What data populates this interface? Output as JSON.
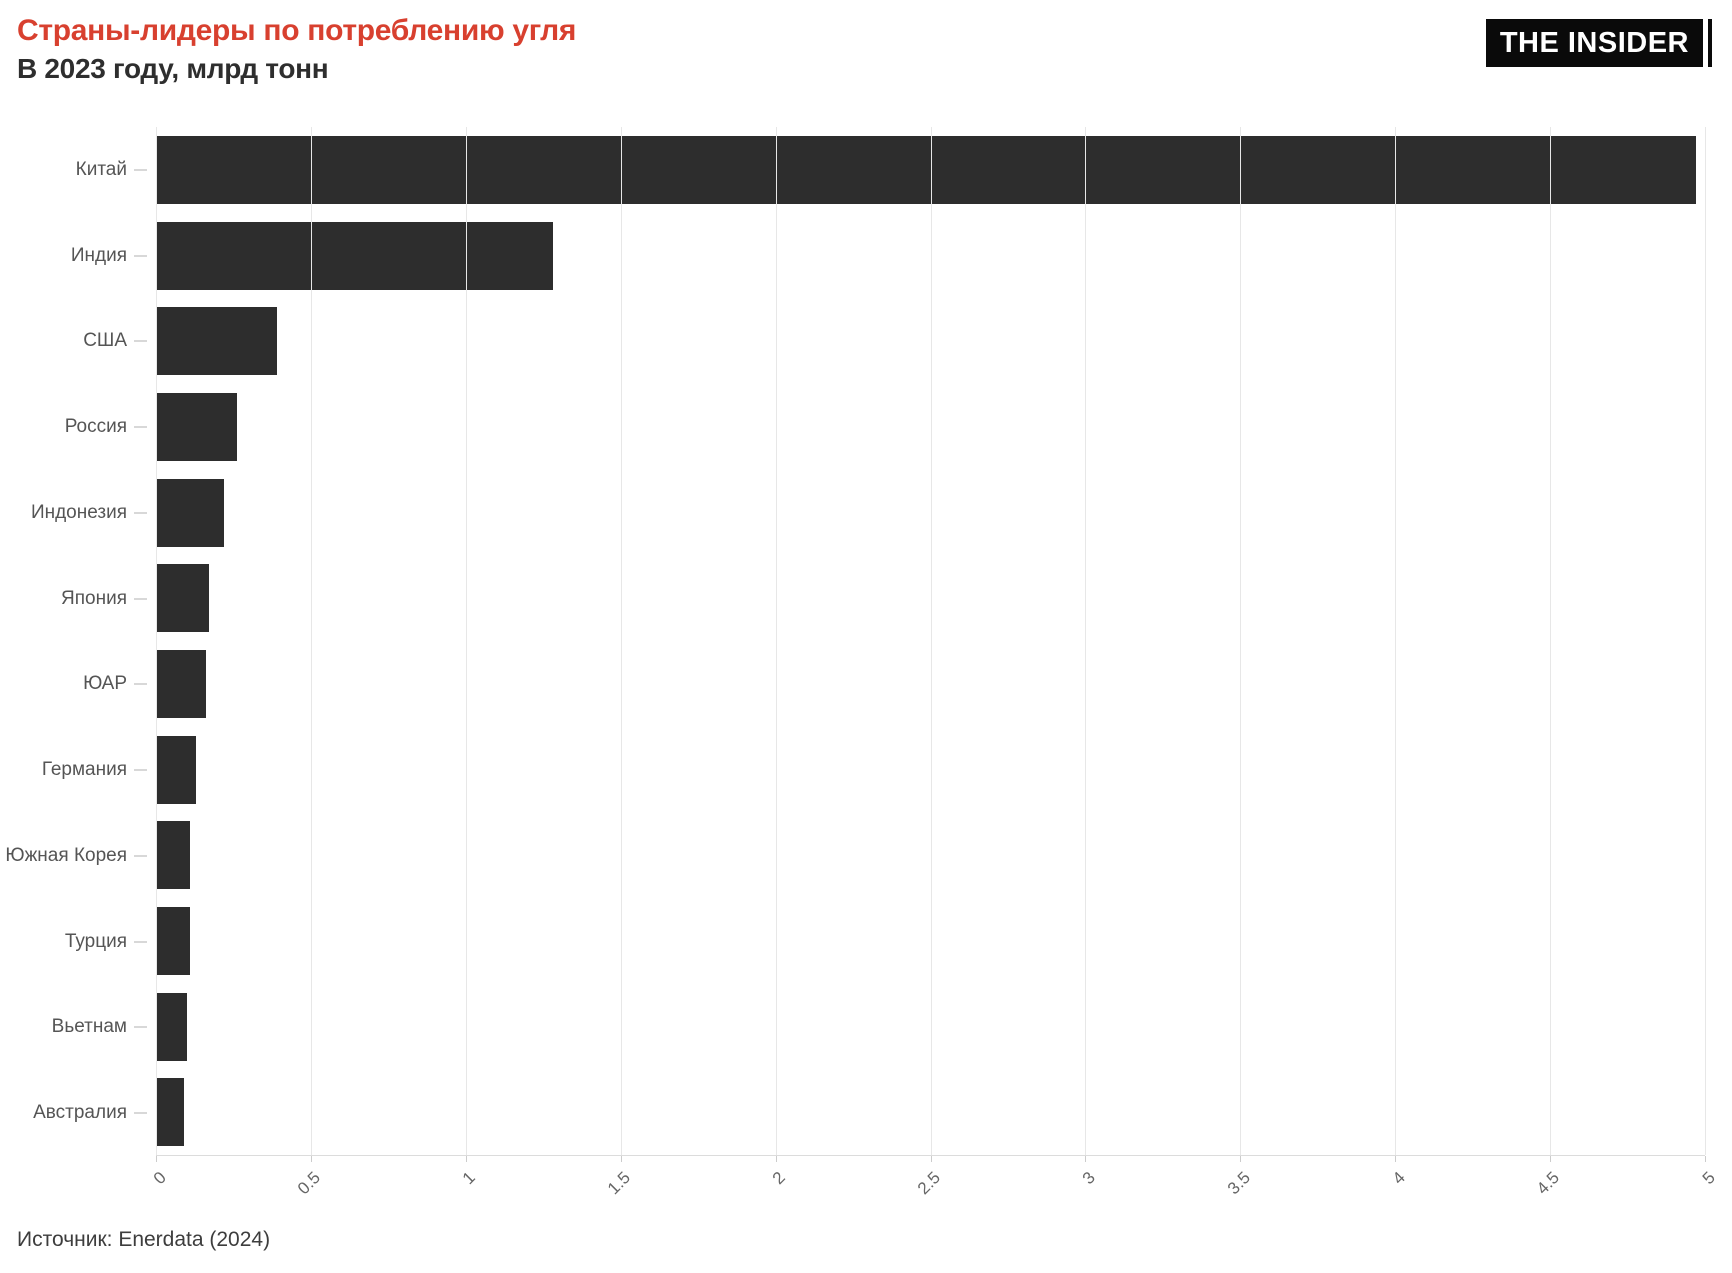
{
  "header": {
    "logo_text": "THE INSIDER"
  },
  "colors": {
    "accent_red": "#d8402f",
    "bar": "#2d2d2d",
    "grid": "#e7e7e7",
    "axis_line": "#dcdcdc",
    "y_label": "#555555",
    "x_tick_label": "#666666",
    "logo_bg": "#0a0a0a",
    "logo_text": "#ffffff",
    "background": "#ffffff"
  },
  "chart_data": {
    "type": "bar",
    "orientation": "horizontal",
    "title": "Страны-лидеры по потреблению угля",
    "subtitle": "В 2023 году, млрд тонн",
    "unit": "млрд тонн",
    "year": "2023",
    "categories": [
      "Китай",
      "Индия",
      "США",
      "Россия",
      "Индонезия",
      "Япония",
      "ЮАР",
      "Германия",
      "Южная Корея",
      "Турция",
      "Вьетнам",
      "Австралия"
    ],
    "values": [
      4.97,
      1.28,
      0.39,
      0.26,
      0.22,
      0.17,
      0.16,
      0.13,
      0.11,
      0.11,
      0.1,
      0.09
    ],
    "xlim": [
      0,
      5
    ],
    "x_ticks": [
      0,
      0.5,
      1,
      1.5,
      2,
      2.5,
      3,
      3.5,
      4,
      4.5,
      5
    ],
    "x_tick_labels": [
      "0",
      "0.5",
      "1",
      "1.5",
      "2",
      "2.5",
      "3",
      "3.5",
      "4",
      "4.5",
      "5"
    ],
    "grid": true,
    "legend": "none",
    "source": "Источник: Enerdata (2024)"
  }
}
